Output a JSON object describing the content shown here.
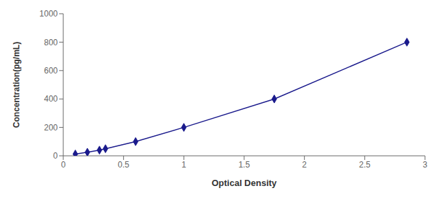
{
  "chart_data": {
    "type": "line",
    "x": [
      0.1,
      0.2,
      0.3,
      0.35,
      0.6,
      1.0,
      1.75,
      2.85
    ],
    "values": [
      12.5,
      25,
      40,
      50,
      100,
      200,
      400,
      800
    ],
    "color": "#1a1a8c",
    "marker": "diamond",
    "xlabel": "Optical Density",
    "ylabel": "Concentration(pg/mL)",
    "xlim": [
      0,
      3
    ],
    "ylim": [
      0,
      1000
    ],
    "xticks": [
      0,
      0.5,
      1,
      1.5,
      2,
      2.5,
      3
    ],
    "yticks": [
      0,
      200,
      400,
      600,
      800,
      1000
    ],
    "grid": false
  }
}
